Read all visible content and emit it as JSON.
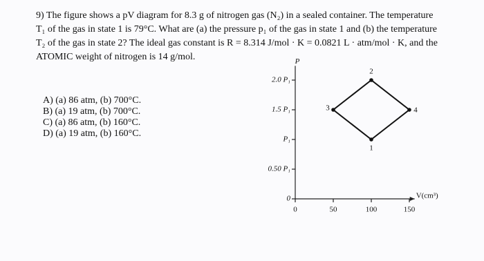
{
  "question": {
    "lines": [
      "9) The figure shows a pV diagram for 8.3 g of nitrogen gas (N₂) in a sealed container. The temperature",
      "T₁ of the gas in state 1 is 79°C. What are (a) the pressure p₁ of the gas in state 1 and (b) the temperature",
      "T₂ of the gas in state 2? The ideal gas constant is R = 8.314 J/mol · K = 0.0821 L · atm/mol · K, and the",
      "ATOMIC weight of nitrogen is 14 g/mol."
    ]
  },
  "options": [
    "A) (a) 86 atm, (b) 700°C.",
    "B) (a) 19 atm, (b) 700°C.",
    "C) (a) 86 atm, (b) 160°C.",
    "D) (a) 19 atm, (b) 160°C."
  ],
  "figure": {
    "y_label": "P",
    "x_label": "V(cm³)",
    "xlim": [
      0,
      157
    ],
    "ylim": [
      0,
      2.24
    ],
    "xticks": [
      0,
      50,
      100,
      150
    ],
    "yticks": [
      0,
      {
        "value": 0.5,
        "label": "0.50 P₁"
      },
      {
        "value": 1,
        "label": "P₁"
      },
      {
        "value": 1.5,
        "label": "1.5 P₁"
      },
      {
        "value": 2,
        "label": "2.0 P₁"
      }
    ],
    "points": [
      {
        "label": "1",
        "x": 100,
        "y": 1
      },
      {
        "label": "2",
        "x": 100,
        "y": 2
      },
      {
        "label": "3",
        "x": 50,
        "y": 1.5
      },
      {
        "label": "4",
        "x": 150,
        "y": 1.5
      }
    ]
  }
}
